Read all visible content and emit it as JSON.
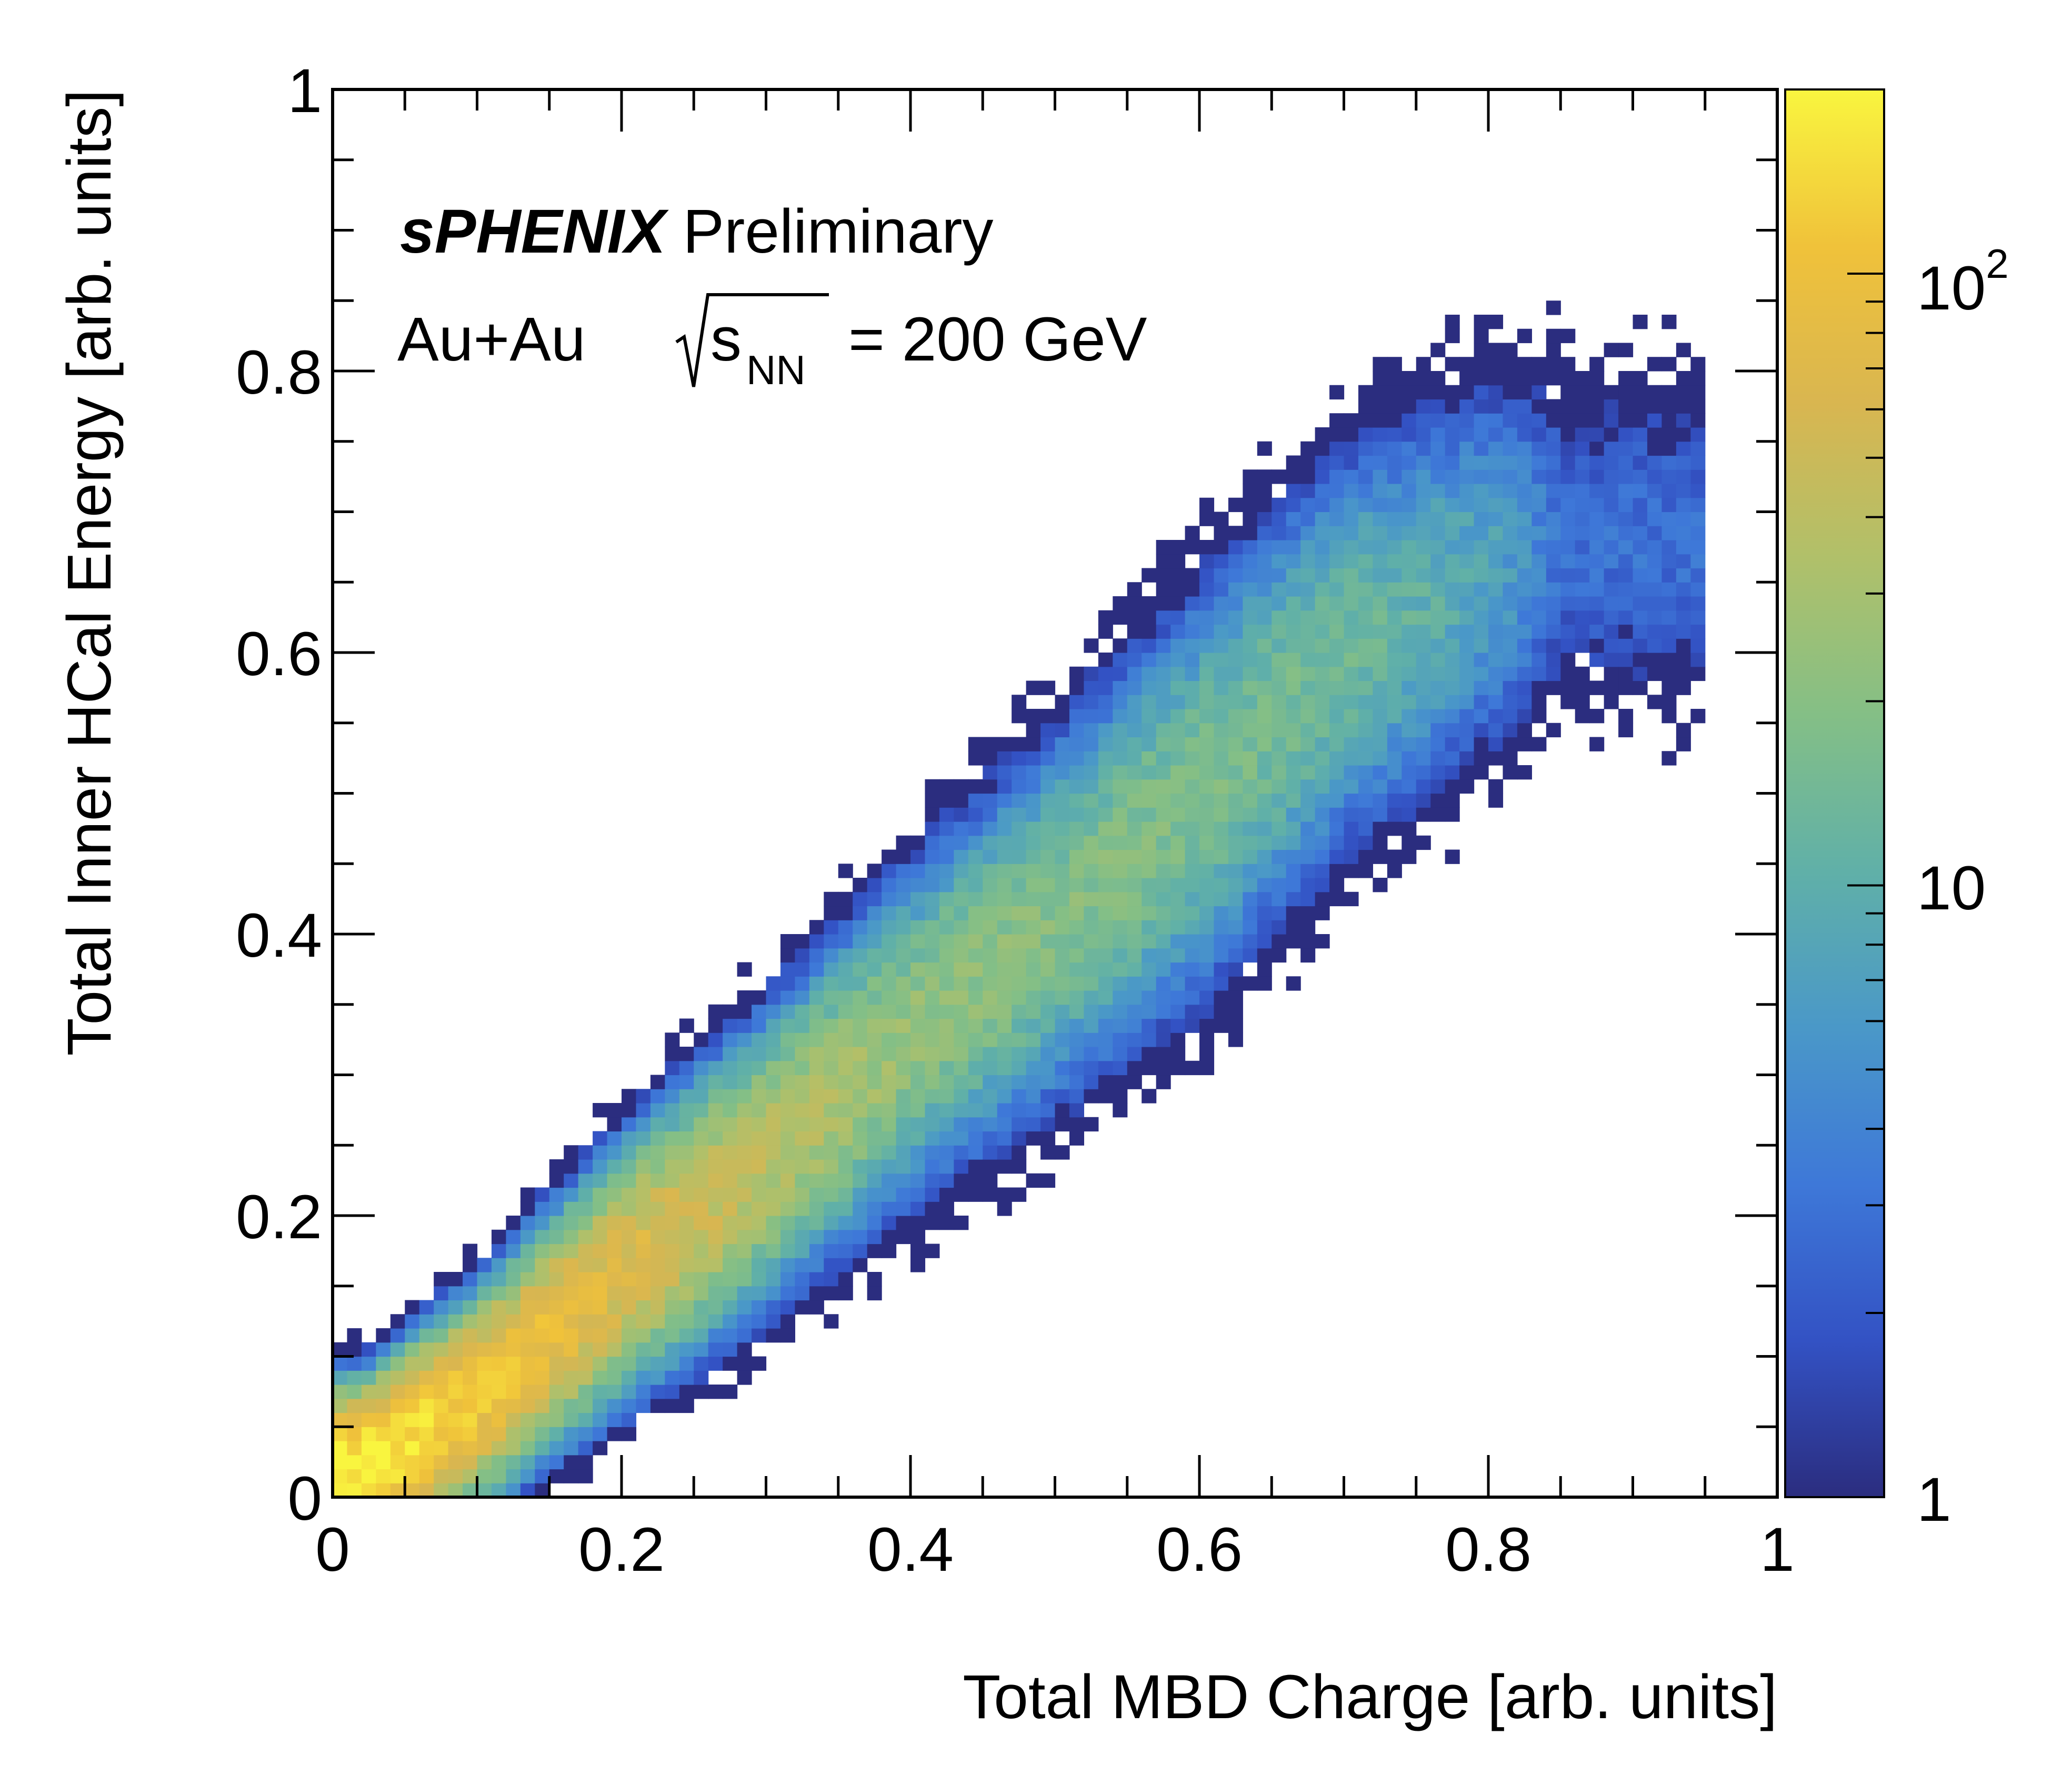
{
  "chart_data": {
    "type": "heatmap",
    "experiment_label": "sPHENIX",
    "status_label": "Preliminary",
    "collision_system": "Au+Au",
    "energy_symbol": "s",
    "energy_subscript": "NN",
    "energy_value": "= 200 GeV",
    "xlabel": "Total MBD Charge [arb. units]",
    "ylabel": "Total Inner HCal Energy [arb. units]",
    "xlim": [
      0,
      1
    ],
    "ylim": [
      0,
      1
    ],
    "xticks": [
      "0",
      "0.2",
      "0.4",
      "0.6",
      "0.8",
      "1"
    ],
    "yticks": [
      "0",
      "0.2",
      "0.4",
      "0.6",
      "0.8",
      "1"
    ],
    "colorbar": {
      "scale": "log",
      "range": [
        1,
        200
      ],
      "tick_values": [
        1,
        10,
        100
      ],
      "tick_labels": [
        {
          "base": "1",
          "exp": ""
        },
        {
          "base": "10",
          "exp": ""
        },
        {
          "base": "10",
          "exp": "2"
        }
      ],
      "colors": [
        "#2b2d7f",
        "#3352c4",
        "#3e78d8",
        "#4a98c8",
        "#60b0a8",
        "#84bf86",
        "#b0c06a",
        "#d9b650",
        "#f0c23a",
        "#f9f53f"
      ]
    },
    "bins": {
      "nx": 100,
      "ny": 100
    },
    "distribution": {
      "description_of_band_centers": "y ≈ 0.76·x",
      "ridge_x": [
        0.02,
        0.1,
        0.2,
        0.3,
        0.4,
        0.5,
        0.6,
        0.7,
        0.8,
        0.85
      ],
      "ridge_y": [
        0.02,
        0.07,
        0.16,
        0.24,
        0.33,
        0.41,
        0.5,
        0.6,
        0.66,
        0.68
      ],
      "peak_counts": [
        200,
        120,
        70,
        40,
        25,
        20,
        18,
        14,
        8,
        3
      ]
    }
  }
}
